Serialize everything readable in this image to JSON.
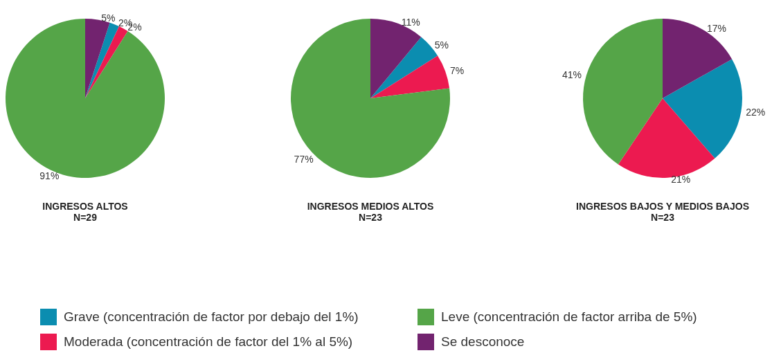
{
  "chart_data": [
    {
      "type": "pie",
      "title": "INGRESOS ALTOS",
      "subtitle": "N=29",
      "categories": [
        "Grave (concentración de factor por debajo del 1%)",
        "Moderada (concentración de factor del 1% al 5%)",
        "Leve (concentración de factor arriba de 5%)",
        "Se desconoce"
      ],
      "values": [
        2,
        2,
        91,
        5
      ],
      "value_labels": [
        "2%",
        "2%",
        "91%",
        "5%"
      ],
      "colors": [
        "#0b8db0",
        "#ec1a50",
        "#55a548",
        "#72236f"
      ],
      "legend": "bottom"
    },
    {
      "type": "pie",
      "title": "INGRESOS MEDIOS ALTOS",
      "subtitle": "N=23",
      "categories": [
        null,
        null,
        null,
        null
      ],
      "values": [
        5,
        7,
        77,
        11
      ],
      "value_labels": [
        "5%",
        "7%",
        "77%",
        "11%"
      ],
      "colors": [
        "#0b8db0",
        "#ec1a50",
        "#55a548",
        "#72236f"
      ]
    },
    {
      "type": "pie",
      "title": "INGRESOS BAJOS Y MEDIOS BAJOS",
      "subtitle": "N=23",
      "categories": [
        null,
        null,
        null,
        null
      ],
      "values": [
        22,
        21,
        41,
        17
      ],
      "value_labels": [
        "22%",
        "21%",
        "41%",
        "17%"
      ],
      "colors": [
        "#0b8db0",
        "#ec1a50",
        "#55a548",
        "#72236f"
      ]
    }
  ]
}
